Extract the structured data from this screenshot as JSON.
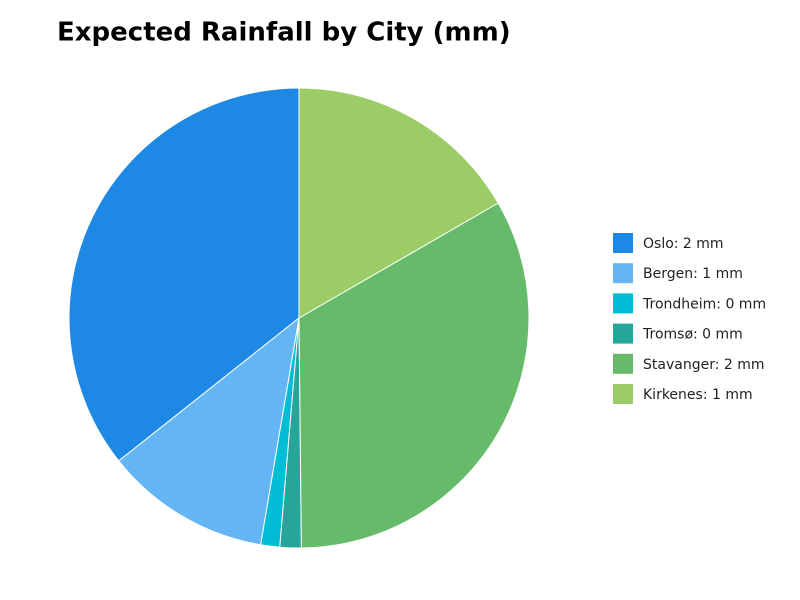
{
  "chart_data": {
    "type": "pie",
    "title": "Expected Rainfall by City (mm)",
    "labels": [
      "Oslo: 2 mm",
      "Bergen: 1 mm",
      "Trondheim: 0 mm",
      "Tromsø: 0 mm",
      "Stavanger: 2 mm",
      "Kirkenes: 1 mm"
    ],
    "values": [
      2.14,
      0.7,
      0.08,
      0.09,
      1.99,
      1.0
    ],
    "colors": [
      "#1e88e5",
      "#64b5f6",
      "#00bcd4",
      "#26a69a",
      "#66bb6a",
      "#9ccc65"
    ],
    "legend": "right"
  }
}
